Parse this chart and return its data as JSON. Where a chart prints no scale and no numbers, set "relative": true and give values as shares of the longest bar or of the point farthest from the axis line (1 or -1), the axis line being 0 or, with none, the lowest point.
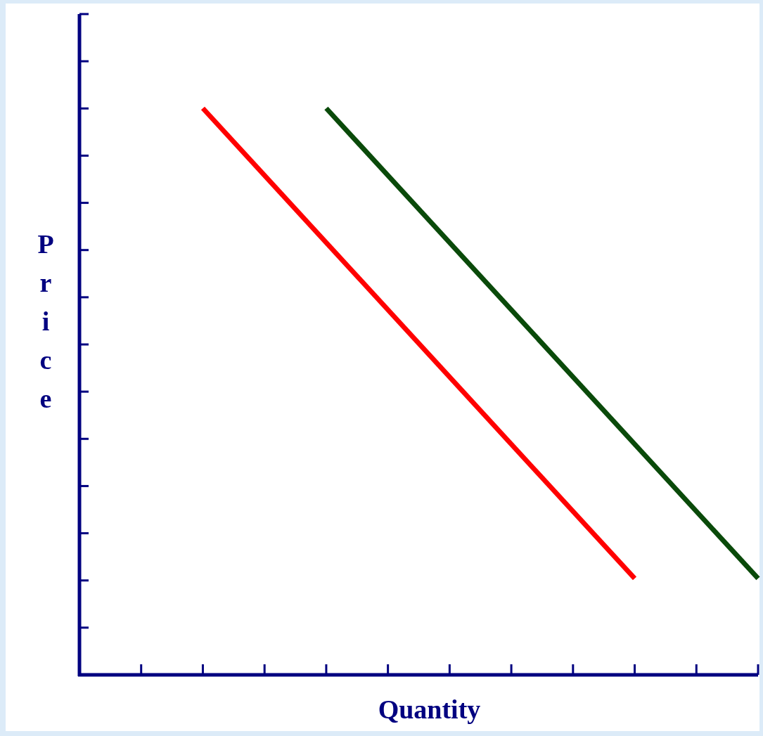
{
  "chart_data": {
    "type": "line",
    "xlabel": "Quantity",
    "ylabel": "Price",
    "relative": true,
    "categories": [
      null,
      null,
      null,
      null,
      null,
      null,
      null,
      null,
      null,
      null,
      null,
      null
    ],
    "marker": "none",
    "line_style": "solid",
    "series": [
      {
        "color": "#ff0000",
        "values": [
          null,
          null,
          1,
          null,
          null,
          null,
          null,
          null,
          null,
          0.17,
          null,
          null
        ]
      },
      {
        "color": "#0a4a0a",
        "values": [
          null,
          null,
          null,
          null,
          1,
          null,
          null,
          null,
          null,
          null,
          null,
          0.17
        ]
      }
    ]
  }
}
